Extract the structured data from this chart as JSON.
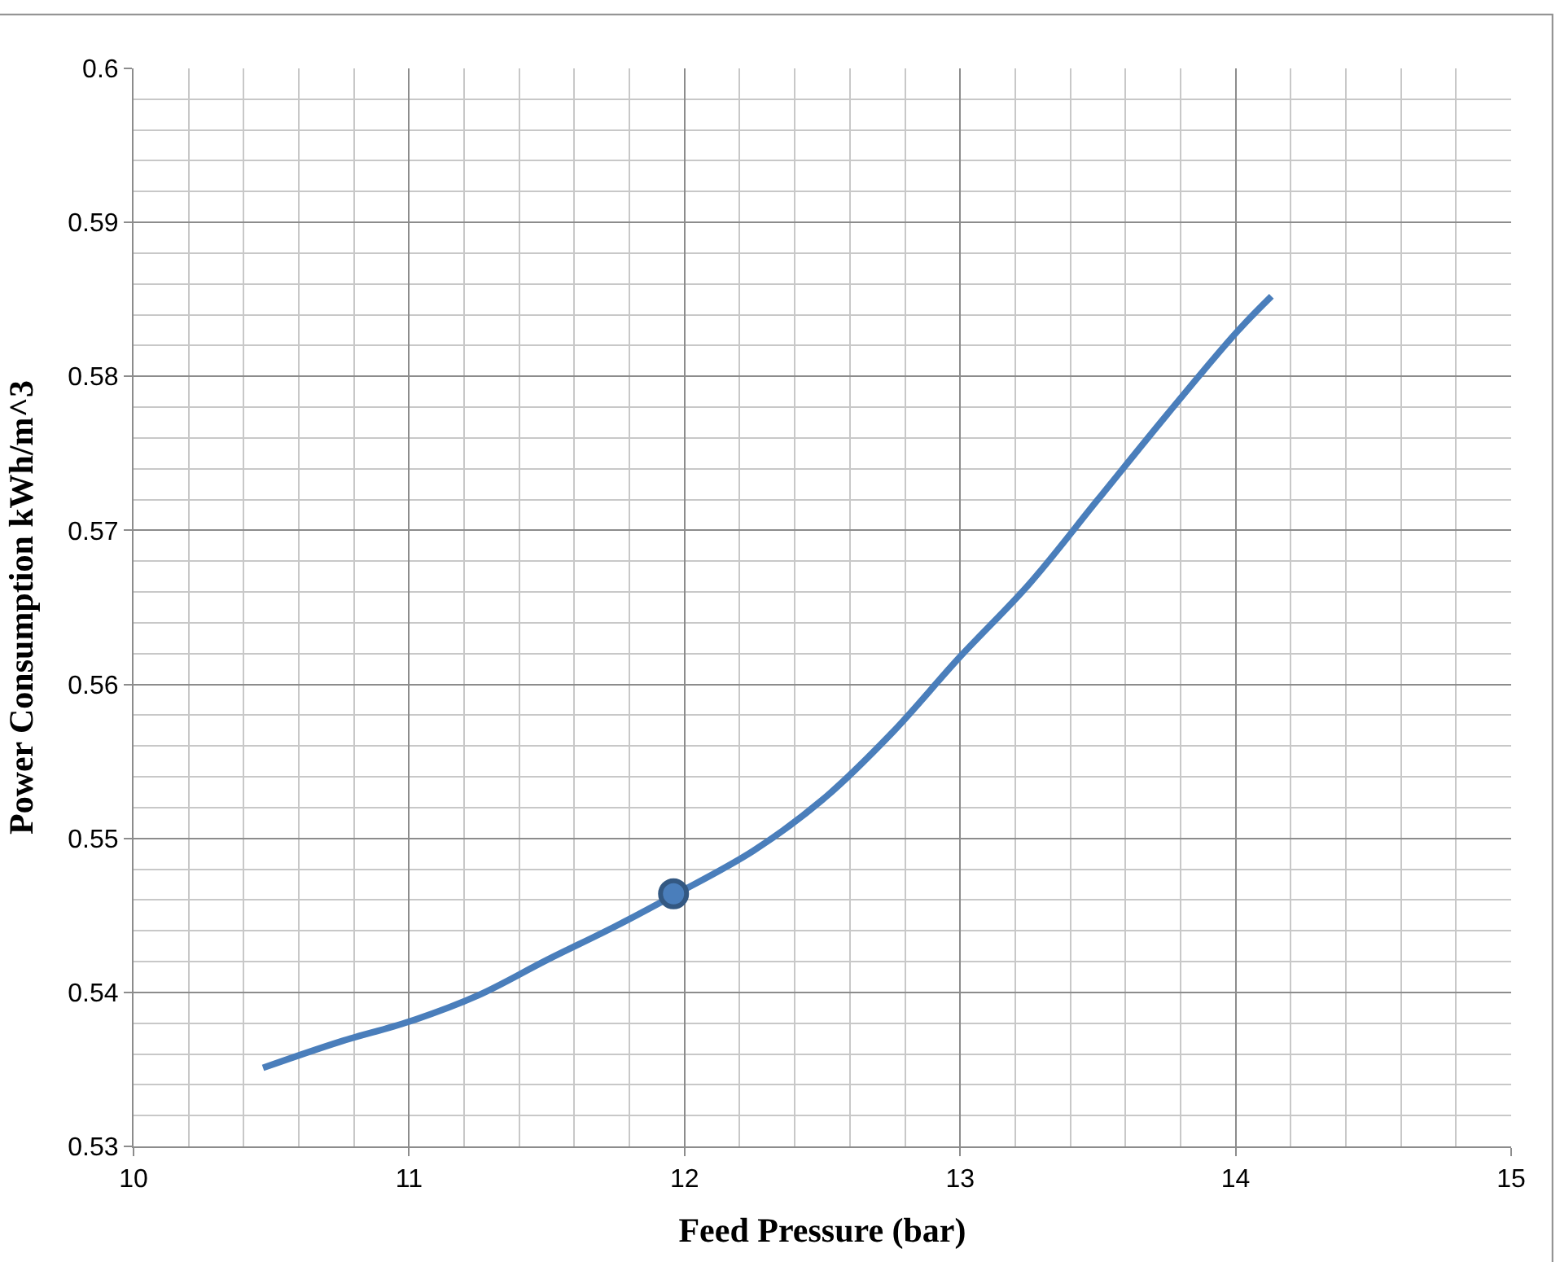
{
  "chart_data": {
    "type": "line",
    "xlabel": "Feed Pressure (bar)",
    "ylabel": "Power Consumption kWh/m^3",
    "xlim": [
      10,
      15
    ],
    "xticks": [
      10,
      11,
      12,
      13,
      14,
      15
    ],
    "ylim": [
      0.53,
      0.6
    ],
    "yticks": [
      0.53,
      0.54,
      0.55,
      0.56,
      0.57,
      0.58,
      0.59,
      0.6
    ],
    "grid": true,
    "legend": false,
    "marker": "none",
    "series": [
      {
        "color": "#4a7ebb",
        "x": [
          10.47,
          10.75,
          11.0,
          11.25,
          11.5,
          11.75,
          11.96,
          12.25,
          12.5,
          12.75,
          13.0,
          13.25,
          13.5,
          13.75,
          14.0,
          14.13
        ],
        "values": [
          0.5351,
          0.5368,
          0.5381,
          0.5398,
          0.5421,
          0.5443,
          0.5463,
          0.5492,
          0.5525,
          0.5568,
          0.5618,
          0.5665,
          0.572,
          0.5775,
          0.5828,
          0.5852
        ]
      },
      {
        "type": "scatter",
        "marker": "circle",
        "color": "#4a7ebb",
        "x": [
          11.96
        ],
        "values": [
          0.5464
        ]
      }
    ]
  }
}
